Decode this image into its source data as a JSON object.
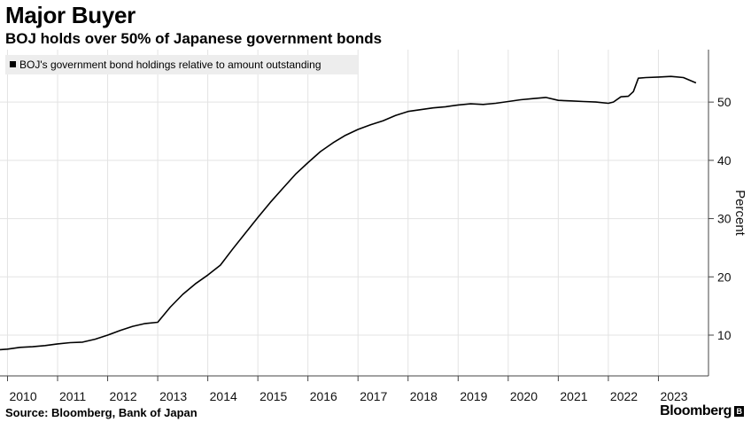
{
  "title": "Major Buyer",
  "subtitle": "BOJ holds over 50% of Japanese government bonds",
  "source": "Source: Bloomberg, Bank of Japan",
  "logo": "Bloomberg",
  "chart_data": {
    "type": "line",
    "title": "Major Buyer",
    "subtitle": "BOJ holds over 50% of Japanese government bonds",
    "ylabel": "Percent",
    "xlabel": "",
    "ylim": [
      3,
      59
    ],
    "xlim": [
      2009.85,
      2024.0
    ],
    "yticks": [
      10,
      20,
      30,
      40,
      50
    ],
    "xticks": [
      "2010",
      "2011",
      "2012",
      "2013",
      "2014",
      "2015",
      "2016",
      "2017",
      "2018",
      "2019",
      "2020",
      "2021",
      "2022",
      "2023"
    ],
    "grid": true,
    "legend": "top-left",
    "series": [
      {
        "name": "BOJ's government bond holdings relative to amount outstanding",
        "color": "#000000",
        "x": [
          2009.85,
          2010.0,
          2010.25,
          2010.5,
          2010.75,
          2011.0,
          2011.25,
          2011.5,
          2011.75,
          2012.0,
          2012.25,
          2012.5,
          2012.75,
          2013.0,
          2013.25,
          2013.5,
          2013.75,
          2014.0,
          2014.25,
          2014.5,
          2014.75,
          2015.0,
          2015.25,
          2015.5,
          2015.75,
          2016.0,
          2016.25,
          2016.5,
          2016.75,
          2017.0,
          2017.25,
          2017.5,
          2017.75,
          2018.0,
          2018.25,
          2018.5,
          2018.75,
          2019.0,
          2019.25,
          2019.5,
          2019.75,
          2020.0,
          2020.25,
          2020.5,
          2020.75,
          2021.0,
          2021.25,
          2021.5,
          2021.75,
          2022.0,
          2022.1,
          2022.25,
          2022.4,
          2022.5,
          2022.6,
          2022.75,
          2023.0,
          2023.25,
          2023.5,
          2023.75
        ],
        "y": [
          7.5,
          7.6,
          7.9,
          8.0,
          8.2,
          8.5,
          8.7,
          8.8,
          9.3,
          10.0,
          10.8,
          11.5,
          12.0,
          12.2,
          14.8,
          17.0,
          18.8,
          20.3,
          22.0,
          24.8,
          27.5,
          30.2,
          32.8,
          35.2,
          37.6,
          39.6,
          41.5,
          43.0,
          44.3,
          45.3,
          46.1,
          46.8,
          47.7,
          48.4,
          48.7,
          49.0,
          49.2,
          49.5,
          49.7,
          49.6,
          49.8,
          50.1,
          50.4,
          50.6,
          50.8,
          50.3,
          50.2,
          50.1,
          50.0,
          49.8,
          50.0,
          50.9,
          51.0,
          51.8,
          54.1,
          54.2,
          54.3,
          54.4,
          54.2,
          53.3
        ]
      }
    ]
  }
}
